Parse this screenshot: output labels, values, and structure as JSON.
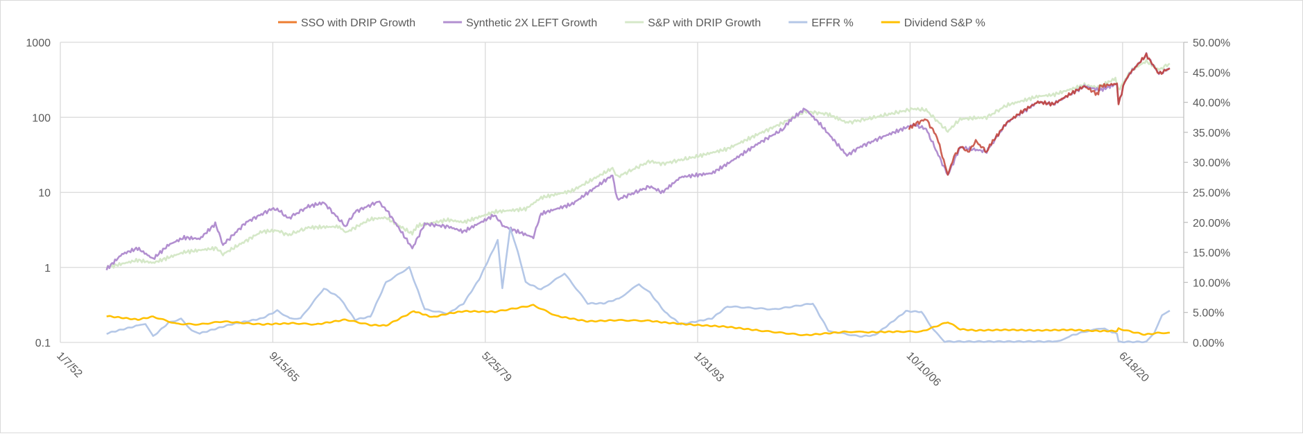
{
  "chart_data": {
    "type": "line",
    "title": "",
    "legend_position": "top",
    "x_axis": {
      "type": "date",
      "min_year": 1952.02,
      "max_year": 2024.4,
      "tick_years": [
        1952.02,
        1965.71,
        1979.4,
        1993.08,
        2006.77,
        2020.46
      ],
      "tick_labels": [
        "1/7/52",
        "9/15/65",
        "5/25/79",
        "1/31/93",
        "10/10/06",
        "6/18/20"
      ],
      "grid": true
    },
    "y_axis_left": {
      "scale": "log",
      "ylim": [
        0.1,
        1000
      ],
      "tick_values": [
        0.1,
        1,
        10,
        100,
        1000
      ],
      "tick_labels": [
        "0.1",
        "1",
        "10",
        "100",
        "1000"
      ],
      "grid": true
    },
    "y_axis_right": {
      "scale": "linear",
      "ylim": [
        0,
        50
      ],
      "tick_values": [
        0,
        5,
        10,
        15,
        20,
        25,
        30,
        35,
        40,
        45,
        50
      ],
      "tick_labels": [
        "0.00%",
        "5.00%",
        "10.00%",
        "15.00%",
        "20.00%",
        "25.00%",
        "30.00%",
        "35.00%",
        "40.00%",
        "45.00%",
        "50.00%"
      ]
    },
    "series": [
      {
        "name": "S&P with DRIP Growth",
        "axis": "left",
        "color": "#D5E8C8",
        "x": [
          1955,
          1957,
          1958,
          1960,
          1962,
          1962.5,
          1965,
          1966,
          1966.7,
          1968,
          1970,
          1970.4,
          1972,
          1973,
          1974.7,
          1975,
          1977,
          1978,
          1980,
          1982,
          1983,
          1985,
          1987.6,
          1987.9,
          1990,
          1990.8,
          1993,
          1995,
          1997,
          1998.6,
          2000,
          2001.5,
          2002.7,
          2004,
          2007,
          2007.8,
          2009.2,
          2010,
          2011.7,
          2013,
          2015,
          2016,
          2018,
          2018.9,
          2020,
          2020.2,
          2021,
          2021.99,
          2022.8,
          2023.5
        ],
        "values": [
          1.0,
          1.25,
          1.15,
          1.6,
          1.8,
          1.5,
          3.0,
          3.1,
          2.7,
          3.4,
          3.5,
          2.9,
          4.4,
          4.6,
          2.8,
          3.6,
          4.3,
          4.0,
          5.5,
          6.0,
          8.5,
          10.5,
          21,
          16,
          26,
          24,
          30,
          38,
          60,
          85,
          120,
          110,
          85,
          95,
          130,
          125,
          65,
          95,
          100,
          145,
          190,
          200,
          270,
          250,
          330,
          230,
          420,
          560,
          430,
          520
        ]
      },
      {
        "name": "Synthetic 2X LEFT Growth",
        "axis": "left",
        "color": "#B28FD0",
        "x": [
          1955,
          1956,
          1957,
          1958,
          1959,
          1960,
          1961,
          1962,
          1962.5,
          1964,
          1965.5,
          1966,
          1966.7,
          1968,
          1969,
          1970.4,
          1971,
          1972.5,
          1973,
          1974.7,
          1975.5,
          1977,
          1978,
          1980,
          1980.5,
          1982.5,
          1983,
          1985,
          1987.6,
          1987.9,
          1990,
          1990.8,
          1992,
          1994,
          1995,
          1997,
          1998.6,
          1999,
          2000,
          2001,
          2002.7,
          2003.5,
          2005,
          2007,
          2007.8,
          2009.2,
          2010,
          2011.7,
          2013,
          2015,
          2016,
          2018,
          2019,
          2020.1,
          2020.2,
          2020.6,
          2021,
          2021.99,
          2022.8,
          2023.5
        ],
        "values": [
          0.95,
          1.5,
          1.8,
          1.3,
          2.0,
          2.5,
          2.4,
          3.8,
          2.0,
          4.0,
          5.8,
          6.0,
          4.5,
          6.5,
          7.3,
          3.5,
          5.5,
          7.5,
          6.0,
          1.8,
          3.8,
          3.5,
          3.0,
          5.0,
          3.6,
          2.5,
          5.2,
          7,
          17,
          8,
          12,
          10,
          16,
          18,
          24,
          45,
          70,
          90,
          130,
          80,
          31,
          40,
          55,
          80,
          70,
          17,
          40,
          35,
          85,
          160,
          150,
          260,
          230,
          280,
          150,
          300,
          400,
          680,
          380,
          450
        ]
      },
      {
        "name": "SSO with DRIP Growth",
        "axis": "left",
        "color": "#ED7D31",
        "x": [
          2006.7,
          2007,
          2007.8,
          2008.5,
          2009.2,
          2009.6,
          2010,
          2010.5,
          2011,
          2011.7,
          2012,
          2013,
          2014,
          2015,
          2016,
          2017,
          2018,
          2018.9,
          2019,
          2020.1,
          2020.2,
          2020.6,
          2021,
          2021.99,
          2022.8,
          2023.5
        ],
        "values": [
          70,
          80,
          95,
          55,
          17,
          30,
          40,
          35,
          48,
          35,
          45,
          85,
          120,
          160,
          150,
          200,
          260,
          200,
          260,
          280,
          150,
          300,
          400,
          680,
          380,
          450
        ]
      },
      {
        "name": "EFFR %",
        "axis": "right",
        "color": "#B4C7E7",
        "x": [
          1955,
          1957,
          1957.5,
          1958,
          1959,
          1959.8,
          1960.5,
          1961,
          1963,
          1965,
          1966,
          1966.8,
          1967.5,
          1969,
          1970,
          1971,
          1972,
          1973,
          1974.5,
          1975.5,
          1977,
          1978,
          1979,
          1980.2,
          1980.5,
          1981,
          1981.5,
          1982,
          1983,
          1984.5,
          1986,
          1987,
          1988,
          1989.3,
          1990,
          1991,
          1992,
          1994,
          1995,
          1998,
          2000.5,
          2001.5,
          2002,
          2003.5,
          2004.5,
          2006.5,
          2007.5,
          2008.3,
          2009,
          2015.9,
          2016.5,
          2017,
          2018,
          2019.3,
          2019.8,
          2020.1,
          2020.2,
          2022,
          2022.5,
          2023,
          2023.5
        ],
        "values": [
          1.5,
          2.8,
          3.0,
          1.0,
          3.3,
          3.9,
          2.0,
          1.5,
          3.0,
          4.0,
          5.3,
          4.0,
          4.0,
          9.0,
          7.5,
          3.8,
          4.3,
          10,
          12.5,
          5.5,
          4.8,
          6.5,
          10.5,
          17,
          9,
          19,
          15,
          10,
          8.8,
          11.5,
          6.5,
          6.5,
          7.3,
          9.7,
          8.3,
          5,
          3,
          4,
          6,
          5.5,
          6.5,
          2,
          1.7,
          1,
          1.2,
          5.2,
          5.1,
          2,
          0.15,
          0.15,
          0.4,
          1.0,
          1.8,
          2.4,
          1.7,
          1.5,
          0.1,
          0.1,
          1.5,
          4.5,
          5.3
        ]
      },
      {
        "name": "Dividend S&P %",
        "axis": "right",
        "color": "#FFC000",
        "x": [
          1955,
          1957,
          1958,
          1959.5,
          1961,
          1962.5,
          1965,
          1967,
          1968.5,
          1970.4,
          1972,
          1973,
          1974.8,
          1976,
          1977,
          1978,
          1980,
          1982.5,
          1984,
          1986,
          1987.8,
          1990,
          1991,
          1993,
          1995,
          1997,
          2000,
          2002.7,
          2004,
          2006,
          2007.5,
          2009.2,
          2010,
          2011,
          2013,
          2015,
          2017,
          2019,
          2020.1,
          2020.2,
          2021,
          2021.9,
          2022.8,
          2023.5
        ],
        "values": [
          4.4,
          3.8,
          4.3,
          3.1,
          3.0,
          3.5,
          3.0,
          3.2,
          3.0,
          3.8,
          2.9,
          2.8,
          5.2,
          4.2,
          4.8,
          5.2,
          5.1,
          6.2,
          4.4,
          3.5,
          3.7,
          3.6,
          3.3,
          2.9,
          2.6,
          2.0,
          1.2,
          1.8,
          1.7,
          1.8,
          1.8,
          3.4,
          2.2,
          2.0,
          2.1,
          2.0,
          2.1,
          1.9,
          1.9,
          2.3,
          1.8,
          1.3,
          1.6,
          1.6
        ]
      }
    ]
  }
}
